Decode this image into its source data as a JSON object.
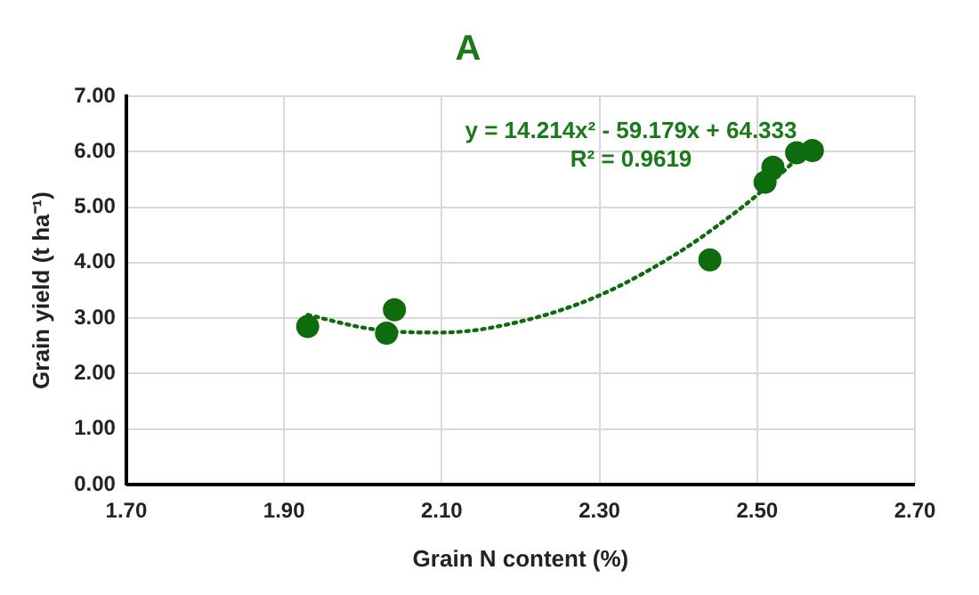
{
  "chart_data": {
    "type": "scatter",
    "title": "A",
    "xlabel": "Grain N content (%)",
    "ylabel": "Grain yield (t ha⁻¹)",
    "xlim": [
      1.7,
      2.7
    ],
    "xticks": [
      {
        "value": 1.7,
        "label": "1.70"
      },
      {
        "value": 1.9,
        "label": "1.90"
      },
      {
        "value": 2.1,
        "label": "2.10"
      },
      {
        "value": 2.3,
        "label": "2.30"
      },
      {
        "value": 2.5,
        "label": "2.50"
      },
      {
        "value": 2.7,
        "label": "2.70"
      }
    ],
    "ylim": [
      0,
      7
    ],
    "yticks": [
      {
        "value": 0,
        "label": "0.00"
      },
      {
        "value": 1,
        "label": "1.00"
      },
      {
        "value": 2,
        "label": "2.00"
      },
      {
        "value": 3,
        "label": "3.00"
      },
      {
        "value": 4,
        "label": "4.00"
      },
      {
        "value": 5,
        "label": "5.00"
      },
      {
        "value": 6,
        "label": "6.00"
      },
      {
        "value": 7,
        "label": "7.00"
      }
    ],
    "grid": true,
    "legend": false,
    "marker": "circle",
    "series": [
      {
        "type": "scatter",
        "color": "#0e6b0e",
        "x": [
          1.93,
          2.03,
          2.04,
          2.44,
          2.51,
          2.52,
          2.55,
          2.57
        ],
        "values": [
          2.85,
          2.73,
          3.15,
          4.05,
          5.45,
          5.72,
          5.98,
          6.02
        ]
      },
      {
        "type": "line",
        "color": "#0e6b0e",
        "line_style": "dotted",
        "marker": "none",
        "x": [
          1.93,
          2.0,
          2.05,
          2.1,
          2.2,
          2.3,
          2.4,
          2.45,
          2.5,
          2.57
        ],
        "values": [
          3.06,
          2.83,
          2.75,
          2.74,
          2.94,
          3.41,
          4.18,
          4.67,
          5.22,
          6.13
        ]
      }
    ],
    "annotations": [
      "y = 14.214x² - 59.179x + 64.333",
      "R² = 0.9619"
    ]
  }
}
